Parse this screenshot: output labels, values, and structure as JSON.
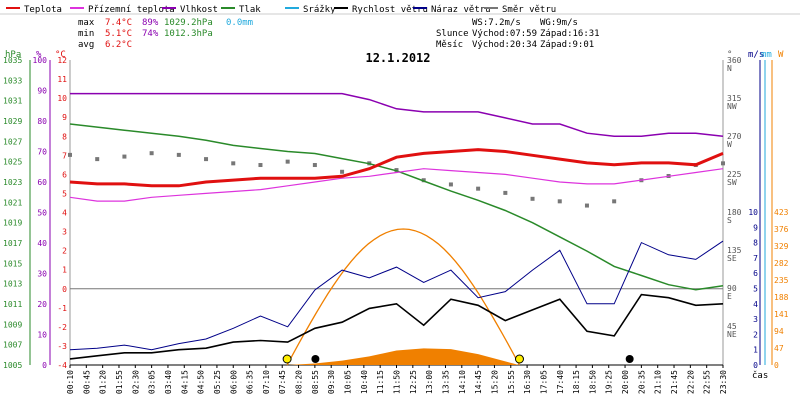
{
  "legend": [
    {
      "label": "Teplota",
      "color": "#e01010"
    },
    {
      "label": "Přízemní teplota",
      "color": "#dd33dd"
    },
    {
      "label": "Vlhkost",
      "color": "#8a00b0"
    },
    {
      "label": "Tlak",
      "color": "#2a8a2a"
    },
    {
      "label": "Srážky",
      "color": "#22aadd"
    },
    {
      "label": "Rychlost větru",
      "color": "#000000"
    },
    {
      "label": "Náraz větru",
      "color": "#000088"
    },
    {
      "label": "Směr větru",
      "color": "#777777"
    }
  ],
  "stats": {
    "max_label": "max",
    "max_temp": "7.4°C",
    "max_hum": "89%",
    "max_press": "1029.2hPa",
    "max_rain": "0.0mm",
    "min_label": "min",
    "min_temp": "5.1°C",
    "min_hum": "74%",
    "min_press": "1012.3hPa",
    "avg_label": "avg",
    "avg_temp": "6.2°C"
  },
  "wind_info": {
    "ws": "WS:7.2m/s",
    "wg": "WG:9m/s"
  },
  "sun": {
    "label": "Slunce",
    "rise": "Východ:07:59",
    "set": "Západ:16:31"
  },
  "moon": {
    "label": "Měsíc",
    "rise": "Východ:20:34",
    "set": "Západ:9:01"
  },
  "title": "12.1.2012",
  "unit_labels": {
    "hpa": "hPa",
    "pct": "%",
    "degc": "°C",
    "ms": "m/s",
    "mm": "mm",
    "wm2": "W",
    "deg": "°",
    "time": "čas"
  },
  "chart_data": {
    "type": "line",
    "title": "12.1.2012",
    "axes": {
      "pressure_hPa": {
        "ticks": [
          1005,
          1007,
          1009,
          1011,
          1013,
          1015,
          1017,
          1019,
          1021,
          1023,
          1025,
          1027,
          1029,
          1031,
          1033,
          1035
        ]
      },
      "humidity_pct": {
        "ticks": [
          0,
          10,
          20,
          30,
          40,
          50,
          60,
          70,
          80,
          90,
          100
        ]
      },
      "temperature_C": {
        "ticks": [
          -4,
          -3,
          -2,
          -1,
          0,
          1,
          2,
          3,
          4,
          5,
          6,
          7,
          8,
          9,
          10,
          11,
          12
        ]
      },
      "wind_ms": {
        "ticks": [
          0,
          1,
          2,
          3,
          4,
          5,
          6,
          7,
          8,
          9,
          10
        ]
      },
      "radiation_W": {
        "ticks": [
          0,
          47,
          94,
          141,
          188,
          235,
          282,
          329,
          376,
          423
        ]
      },
      "direction_deg": {
        "ticks": [
          {
            "v": 360,
            "l": "N"
          },
          {
            "v": 315,
            "l": "NW"
          },
          {
            "v": 270,
            "l": "W"
          },
          {
            "v": 225,
            "l": "SW"
          },
          {
            "v": 180,
            "l": "S"
          },
          {
            "v": 135,
            "l": "SE"
          },
          {
            "v": 90,
            "l": "E"
          },
          {
            "v": 45,
            "l": "NE"
          }
        ]
      }
    },
    "time_labels": [
      "00:10",
      "00:45",
      "01:20",
      "01:55",
      "02:30",
      "03:05",
      "03:40",
      "04:15",
      "04:50",
      "05:25",
      "06:00",
      "06:35",
      "07:10",
      "07:45",
      "08:20",
      "08:55",
      "09:30",
      "10:05",
      "10:40",
      "11:15",
      "11:50",
      "12:25",
      "13:00",
      "13:35",
      "14:10",
      "14:45",
      "15:20",
      "15:55",
      "16:30",
      "17:05",
      "17:40",
      "18:15",
      "18:50",
      "19:25",
      "20:00",
      "20:35",
      "21:10",
      "21:45",
      "22:20",
      "22:55",
      "23:30"
    ],
    "series": [
      {
        "name": "Teplota",
        "color": "#e01010",
        "x_hours": [
          0,
          1,
          2,
          3,
          4,
          5,
          6,
          7,
          8,
          9,
          10,
          11,
          12,
          13,
          14,
          15,
          16,
          17,
          18,
          19,
          20,
          21,
          22,
          23,
          24
        ],
        "values": [
          5.6,
          5.5,
          5.5,
          5.4,
          5.4,
          5.6,
          5.7,
          5.8,
          5.8,
          5.8,
          5.9,
          6.3,
          6.9,
          7.1,
          7.2,
          7.3,
          7.2,
          7.0,
          6.8,
          6.6,
          6.5,
          6.6,
          6.6,
          6.5,
          7.1
        ]
      },
      {
        "name": "Přízemní teplota",
        "color": "#dd33dd",
        "x_hours": [
          0,
          1,
          2,
          3,
          4,
          5,
          6,
          7,
          8,
          9,
          10,
          11,
          12,
          13,
          14,
          15,
          16,
          17,
          18,
          19,
          20,
          21,
          22,
          23,
          24
        ],
        "values": [
          4.8,
          4.6,
          4.6,
          4.8,
          4.9,
          5.0,
          5.1,
          5.2,
          5.4,
          5.6,
          5.8,
          5.9,
          6.1,
          6.3,
          6.2,
          6.1,
          6.0,
          5.8,
          5.6,
          5.5,
          5.5,
          5.7,
          5.9,
          6.1,
          6.3
        ]
      },
      {
        "name": "Vlhkost",
        "color": "#8a00b0",
        "x_hours": [
          0,
          1,
          2,
          3,
          4,
          5,
          6,
          7,
          8,
          9,
          10,
          11,
          12,
          13,
          14,
          15,
          16,
          17,
          18,
          19,
          20,
          21,
          22,
          23,
          24
        ],
        "values": [
          89,
          89,
          89,
          89,
          89,
          89,
          89,
          89,
          89,
          89,
          89,
          87,
          84,
          83,
          83,
          83,
          81,
          79,
          79,
          76,
          75,
          75,
          76,
          76,
          75
        ]
      },
      {
        "name": "Tlak",
        "color": "#2a8a2a",
        "x_hours": [
          0,
          1,
          2,
          3,
          4,
          5,
          6,
          7,
          8,
          9,
          10,
          11,
          12,
          13,
          14,
          15,
          16,
          17,
          18,
          19,
          20,
          21,
          22,
          23,
          24
        ],
        "values": [
          1028.7,
          1028.4,
          1028.1,
          1027.8,
          1027.5,
          1027.1,
          1026.6,
          1026.3,
          1026.0,
          1025.8,
          1025.3,
          1024.8,
          1024.1,
          1023.1,
          1022.1,
          1021.2,
          1020.2,
          1019.0,
          1017.6,
          1016.2,
          1014.7,
          1013.8,
          1012.9,
          1012.4,
          1012.8
        ]
      },
      {
        "name": "Srážky",
        "color": "#22aadd",
        "values": [
          0
        ]
      },
      {
        "name": "Rychlost větru",
        "color": "#000000",
        "x_hours": [
          0,
          1,
          2,
          3,
          4,
          5,
          6,
          7,
          8,
          9,
          10,
          11,
          12,
          13,
          14,
          15,
          16,
          17,
          18,
          19,
          20,
          21,
          22,
          23,
          24
        ],
        "values": [
          0.4,
          0.6,
          0.8,
          0.8,
          1.0,
          1.1,
          1.5,
          1.6,
          1.5,
          2.4,
          2.8,
          3.7,
          4.0,
          2.6,
          4.3,
          3.9,
          2.9,
          3.6,
          4.3,
          2.2,
          1.9,
          4.6,
          4.4,
          3.9,
          4.0
        ]
      },
      {
        "name": "Náraz větru",
        "color": "#000088",
        "x_hours": [
          0,
          1,
          2,
          3,
          4,
          5,
          6,
          7,
          8,
          9,
          10,
          11,
          12,
          13,
          14,
          15,
          16,
          17,
          18,
          19,
          20,
          21,
          22,
          23,
          24
        ],
        "values": [
          1.0,
          1.1,
          1.3,
          1.0,
          1.4,
          1.7,
          2.4,
          3.2,
          2.5,
          4.9,
          6.2,
          5.7,
          6.4,
          5.4,
          6.2,
          4.4,
          4.8,
          6.2,
          7.5,
          4.0,
          4.0,
          8.0,
          7.2,
          6.9,
          8.1
        ]
      },
      {
        "name": "Směr větru",
        "color": "#777777",
        "x_hours": [
          0,
          1,
          2,
          3,
          4,
          5,
          6,
          7,
          8,
          9,
          10,
          11,
          12,
          13,
          14,
          15,
          16,
          17,
          18,
          19,
          20,
          21,
          22,
          23,
          24
        ],
        "values": [
          250,
          245,
          248,
          252,
          250,
          245,
          240,
          238,
          242,
          238,
          230,
          240,
          232,
          220,
          215,
          210,
          205,
          198,
          195,
          190,
          195,
          220,
          225,
          238,
          240
        ]
      }
    ],
    "radiation": {
      "name": "Sluneční záření",
      "color": "#f08000",
      "x_hours": [
        8,
        9,
        10,
        11,
        12,
        13,
        14,
        15,
        16,
        16.5
      ],
      "values": [
        0,
        4,
        12,
        24,
        40,
        46,
        44,
        30,
        10,
        0
      ]
    },
    "solar_curve": {
      "color": "#f08000",
      "x_hours": [
        7.98,
        12.25,
        16.52
      ],
      "values": [
        0,
        376,
        0
      ]
    },
    "markers": [
      {
        "type": "sunrise",
        "time": "07:59",
        "hour": 7.98
      },
      {
        "type": "moonset",
        "time": "9:01",
        "hour": 9.02
      },
      {
        "type": "sunset",
        "time": "16:31",
        "hour": 16.52
      },
      {
        "type": "moonrise",
        "time": "20:34",
        "hour": 20.57
      }
    ]
  }
}
